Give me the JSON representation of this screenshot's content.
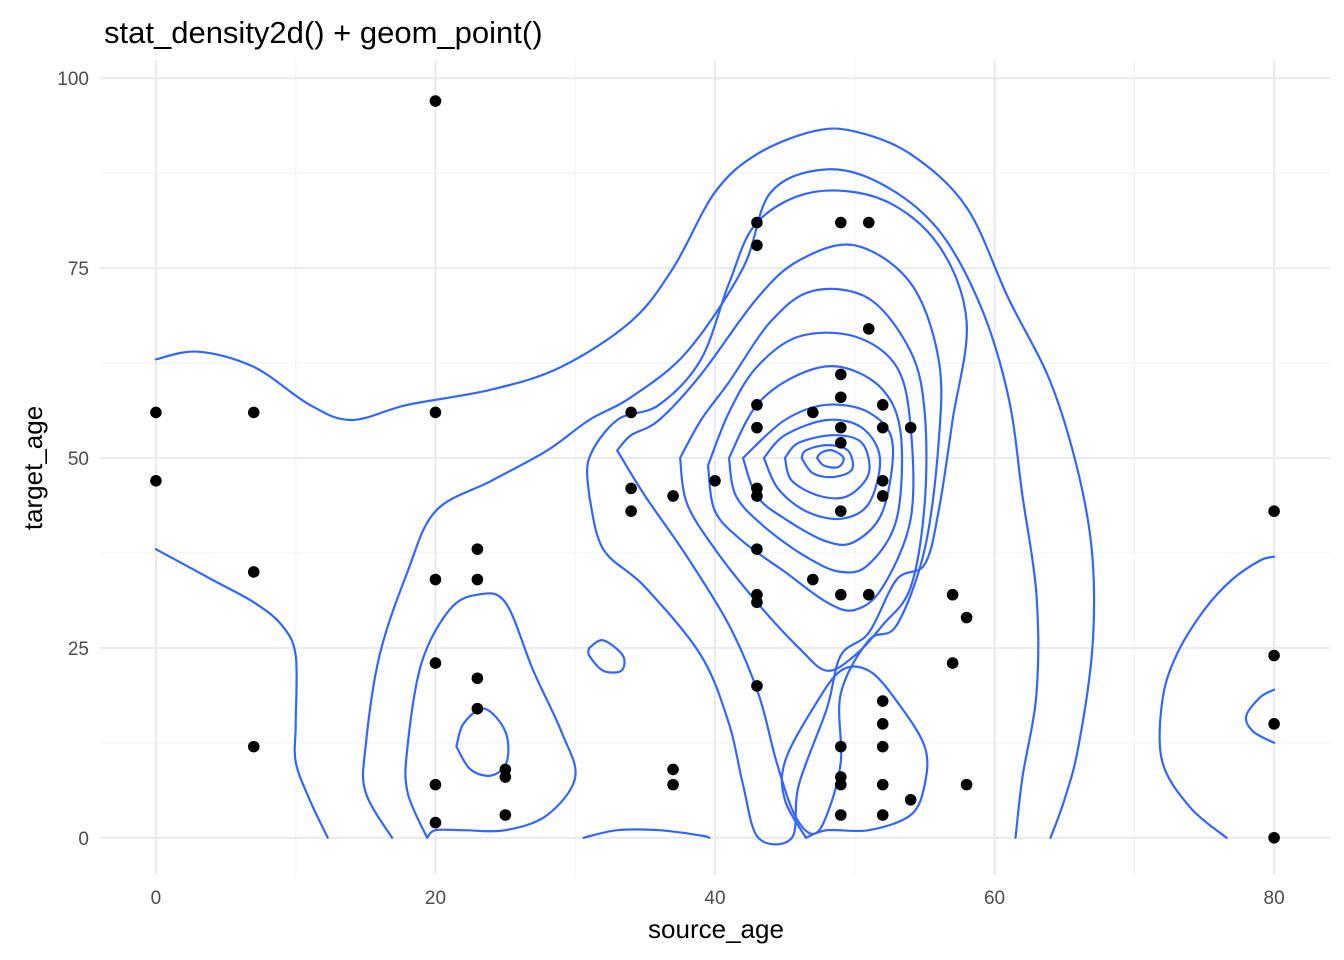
{
  "chart_data": {
    "type": "scatter",
    "title": "stat_density2d() + geom_point()",
    "xlabel": "source_age",
    "ylabel": "target_age",
    "xlim": [
      -4,
      84
    ],
    "ylim": [
      -4.9,
      102.4
    ],
    "x_major_ticks": [
      0,
      20,
      40,
      60,
      80
    ],
    "x_minor_ticks": [
      10,
      30,
      50,
      70
    ],
    "y_major_ticks": [
      0,
      25,
      50,
      75,
      100
    ],
    "y_minor_ticks": [
      12.5,
      37.5,
      62.5,
      87.5
    ],
    "x_tick_labels": [
      "0",
      "20",
      "40",
      "60",
      "80"
    ],
    "y_tick_labels": [
      "0",
      "25",
      "50",
      "75",
      "100"
    ],
    "grid": true,
    "point_color": "#000000",
    "contour_color": "#3366FF",
    "points": [
      [
        0,
        56
      ],
      [
        0,
        47
      ],
      [
        7,
        56
      ],
      [
        7,
        35
      ],
      [
        7,
        12
      ],
      [
        20,
        97
      ],
      [
        20,
        56
      ],
      [
        20,
        34
      ],
      [
        20,
        23
      ],
      [
        20,
        7
      ],
      [
        20,
        2
      ],
      [
        23,
        38
      ],
      [
        23,
        34
      ],
      [
        23,
        21
      ],
      [
        23,
        17
      ],
      [
        25,
        9
      ],
      [
        25,
        8
      ],
      [
        25,
        3
      ],
      [
        34,
        56
      ],
      [
        34,
        46
      ],
      [
        34,
        43
      ],
      [
        37,
        45
      ],
      [
        37,
        9
      ],
      [
        37,
        7
      ],
      [
        40,
        47
      ],
      [
        43,
        81
      ],
      [
        43,
        78
      ],
      [
        43,
        57
      ],
      [
        43,
        54
      ],
      [
        43,
        46
      ],
      [
        43,
        45
      ],
      [
        43,
        38
      ],
      [
        43,
        32
      ],
      [
        43,
        31
      ],
      [
        43,
        20
      ],
      [
        47,
        56
      ],
      [
        47,
        34
      ],
      [
        49,
        81
      ],
      [
        49,
        61
      ],
      [
        49,
        58
      ],
      [
        49,
        54
      ],
      [
        49,
        52
      ],
      [
        49,
        43
      ],
      [
        49,
        32
      ],
      [
        49,
        12
      ],
      [
        49,
        8
      ],
      [
        49,
        7
      ],
      [
        49,
        3
      ],
      [
        51,
        81
      ],
      [
        51,
        67
      ],
      [
        51,
        32
      ],
      [
        52,
        57
      ],
      [
        52,
        54
      ],
      [
        52,
        47
      ],
      [
        52,
        45
      ],
      [
        52,
        18
      ],
      [
        52,
        15
      ],
      [
        52,
        12
      ],
      [
        52,
        7
      ],
      [
        52,
        3
      ],
      [
        54,
        54
      ],
      [
        54,
        5
      ],
      [
        57,
        32
      ],
      [
        57,
        23
      ],
      [
        58,
        29
      ],
      [
        58,
        7
      ],
      [
        80,
        43
      ],
      [
        80,
        24
      ],
      [
        80,
        15
      ],
      [
        80,
        0
      ]
    ],
    "contours": [
      [
        [
          0,
          63
        ],
        [
          3,
          64
        ],
        [
          7,
          62
        ],
        [
          11,
          57
        ],
        [
          14,
          55
        ],
        [
          18,
          57
        ],
        [
          24,
          59
        ],
        [
          29,
          62
        ],
        [
          34,
          68
        ],
        [
          37,
          75
        ],
        [
          40,
          85
        ],
        [
          43,
          90
        ],
        [
          47,
          93
        ],
        [
          50,
          93
        ],
        [
          54,
          90
        ],
        [
          58,
          83
        ],
        [
          61,
          71
        ],
        [
          64,
          60
        ],
        [
          66,
          48
        ],
        [
          67,
          37
        ],
        [
          67,
          25
        ],
        [
          66,
          12
        ],
        [
          65,
          5
        ],
        [
          64,
          0
        ]
      ],
      [
        [
          0,
          38
        ],
        [
          4,
          34
        ],
        [
          7,
          31
        ],
        [
          9,
          28
        ],
        [
          10,
          24
        ],
        [
          10,
          15
        ],
        [
          10,
          10
        ],
        [
          11,
          5
        ],
        [
          12.3,
          0
        ]
      ],
      [
        [
          16.9,
          0
        ],
        [
          15,
          6
        ],
        [
          15,
          12
        ],
        [
          16,
          24
        ],
        [
          18,
          35
        ],
        [
          20,
          43
        ],
        [
          24,
          47
        ],
        [
          28,
          51
        ],
        [
          31,
          55
        ],
        [
          34,
          58
        ],
        [
          38,
          64
        ],
        [
          42,
          75
        ],
        [
          44,
          85
        ],
        [
          48,
          88
        ],
        [
          52,
          86
        ],
        [
          56,
          80
        ],
        [
          59,
          70
        ],
        [
          61,
          58
        ],
        [
          62,
          45
        ],
        [
          63,
          32
        ],
        [
          63,
          19
        ],
        [
          62,
          8
        ],
        [
          61.5,
          0
        ]
      ],
      [
        [
          30.6,
          0
        ],
        [
          33,
          1
        ],
        [
          36,
          1
        ],
        [
          39,
          0.3
        ],
        [
          39.6,
          0
        ]
      ],
      [
        [
          31,
          25
        ],
        [
          32,
          26
        ],
        [
          33.4,
          24
        ],
        [
          33.3,
          22
        ],
        [
          32,
          22
        ],
        [
          31,
          24
        ],
        [
          31,
          25
        ]
      ],
      [
        [
          19.4,
          0
        ],
        [
          18,
          6
        ],
        [
          18,
          12
        ],
        [
          19,
          23
        ],
        [
          21,
          30
        ],
        [
          23,
          32
        ],
        [
          25,
          31
        ],
        [
          27,
          22
        ],
        [
          29,
          14
        ],
        [
          30,
          8
        ],
        [
          28,
          3
        ],
        [
          25,
          1
        ],
        [
          22,
          1
        ],
        [
          20,
          1
        ],
        [
          19.4,
          0
        ]
      ],
      [
        [
          21.5,
          12
        ],
        [
          22,
          15
        ],
        [
          23.5,
          17
        ],
        [
          25,
          14
        ],
        [
          25.1,
          10
        ],
        [
          24,
          8.2
        ],
        [
          22.5,
          9
        ],
        [
          21.5,
          12
        ]
      ],
      [
        [
          31,
          45
        ],
        [
          32,
          38
        ],
        [
          35,
          33
        ],
        [
          39,
          24
        ],
        [
          41,
          15
        ],
        [
          42,
          7
        ],
        [
          43.1,
          0
        ],
        [
          45.5,
          0
        ],
        [
          46,
          7
        ],
        [
          48,
          17
        ],
        [
          49,
          24
        ],
        [
          51,
          27
        ],
        [
          53,
          34
        ],
        [
          55,
          36
        ],
        [
          56,
          43
        ],
        [
          57,
          55
        ],
        [
          58,
          68
        ],
        [
          56,
          78
        ],
        [
          52,
          84
        ],
        [
          47,
          85
        ],
        [
          43,
          81
        ],
        [
          41,
          73
        ],
        [
          39,
          63
        ],
        [
          36,
          57
        ],
        [
          33,
          55
        ],
        [
          31,
          50
        ],
        [
          31,
          45
        ]
      ],
      [
        [
          46.5,
          0
        ],
        [
          45,
          5
        ],
        [
          45,
          10
        ],
        [
          47,
          17
        ],
        [
          49,
          22
        ],
        [
          51,
          22
        ],
        [
          53,
          18
        ],
        [
          55,
          12
        ],
        [
          55,
          7
        ],
        [
          54,
          3
        ],
        [
          51,
          1
        ],
        [
          48,
          1
        ],
        [
          46.5,
          0
        ]
      ],
      [
        [
          33,
          51
        ],
        [
          35,
          45
        ],
        [
          38,
          37
        ],
        [
          41,
          28
        ],
        [
          43.1,
          19
        ],
        [
          44.4,
          10
        ],
        [
          45.7,
          3
        ],
        [
          47,
          0.5
        ],
        [
          48,
          3
        ],
        [
          49,
          10
        ],
        [
          49,
          19
        ],
        [
          51,
          26
        ],
        [
          53,
          28
        ],
        [
          55,
          38
        ],
        [
          56,
          52
        ],
        [
          56,
          63
        ],
        [
          54,
          73
        ],
        [
          50,
          78
        ],
        [
          46,
          76
        ],
        [
          43,
          71
        ],
        [
          39,
          61
        ],
        [
          36,
          55
        ],
        [
          34,
          53
        ],
        [
          33,
          51
        ]
      ],
      [
        [
          37.5,
          50
        ],
        [
          38,
          44
        ],
        [
          40,
          38
        ],
        [
          43,
          31
        ],
        [
          46,
          25
        ],
        [
          48,
          22
        ],
        [
          50,
          24
        ],
        [
          52,
          28
        ],
        [
          54,
          33
        ],
        [
          55,
          44
        ],
        [
          55,
          56
        ],
        [
          54,
          64
        ],
        [
          51,
          71
        ],
        [
          47,
          72
        ],
        [
          44,
          68
        ],
        [
          41,
          60
        ],
        [
          39,
          55
        ],
        [
          37.5,
          50
        ]
      ],
      [
        [
          39.5,
          49
        ],
        [
          40,
          43
        ],
        [
          42,
          39
        ],
        [
          45,
          35
        ],
        [
          48,
          31
        ],
        [
          50,
          30
        ],
        [
          52,
          33
        ],
        [
          54,
          42
        ],
        [
          54,
          54
        ],
        [
          53,
          62
        ],
        [
          50,
          66
        ],
        [
          46,
          66
        ],
        [
          43,
          62
        ],
        [
          41,
          56
        ],
        [
          39.5,
          49
        ]
      ],
      [
        [
          41,
          50
        ],
        [
          41.5,
          45
        ],
        [
          43.5,
          41
        ],
        [
          46.5,
          37
        ],
        [
          49,
          35
        ],
        [
          51,
          36
        ],
        [
          53,
          42
        ],
        [
          53.3,
          53
        ],
        [
          52,
          59
        ],
        [
          49,
          62
        ],
        [
          46,
          61
        ],
        [
          43,
          57
        ],
        [
          41,
          50
        ]
      ],
      [
        [
          42,
          50
        ],
        [
          43,
          45
        ],
        [
          45,
          42
        ],
        [
          48,
          39
        ],
        [
          50,
          39
        ],
        [
          52,
          43
        ],
        [
          52.7,
          52
        ],
        [
          51,
          56
        ],
        [
          48,
          57
        ],
        [
          45,
          55
        ],
        [
          42,
          50
        ]
      ],
      [
        [
          43.5,
          50
        ],
        [
          44.5,
          46
        ],
        [
          46.5,
          43
        ],
        [
          49,
          42
        ],
        [
          51,
          44
        ],
        [
          51.8,
          50
        ],
        [
          50.5,
          54
        ],
        [
          48,
          55
        ],
        [
          45,
          53
        ],
        [
          43.5,
          50
        ]
      ],
      [
        [
          45,
          50
        ],
        [
          45.5,
          47
        ],
        [
          47.5,
          45
        ],
        [
          49.5,
          45
        ],
        [
          51,
          48
        ],
        [
          50.5,
          52
        ],
        [
          48.5,
          53
        ],
        [
          46,
          52
        ],
        [
          45,
          50
        ]
      ],
      [
        [
          46.2,
          50
        ],
        [
          47,
          48
        ],
        [
          48.5,
          47.5
        ],
        [
          49.8,
          48.5
        ],
        [
          49.5,
          51
        ],
        [
          48,
          51.7
        ],
        [
          46.5,
          51
        ],
        [
          46.2,
          50
        ]
      ],
      [
        [
          47.3,
          50
        ],
        [
          47.8,
          49
        ],
        [
          48.8,
          48.8
        ],
        [
          49.2,
          50
        ],
        [
          48.4,
          51
        ],
        [
          47.6,
          50.7
        ],
        [
          47.3,
          50
        ]
      ],
      [
        [
          76.6,
          0
        ],
        [
          74,
          4
        ],
        [
          72,
          10
        ],
        [
          72,
          18
        ],
        [
          73,
          24
        ],
        [
          75,
          30
        ],
        [
          77,
          34
        ],
        [
          79,
          36.5
        ],
        [
          80,
          37
        ]
      ],
      [
        [
          80,
          19.5
        ],
        [
          79,
          18.5
        ],
        [
          78,
          16
        ],
        [
          78.5,
          14
        ],
        [
          80,
          12.5
        ]
      ]
    ]
  }
}
